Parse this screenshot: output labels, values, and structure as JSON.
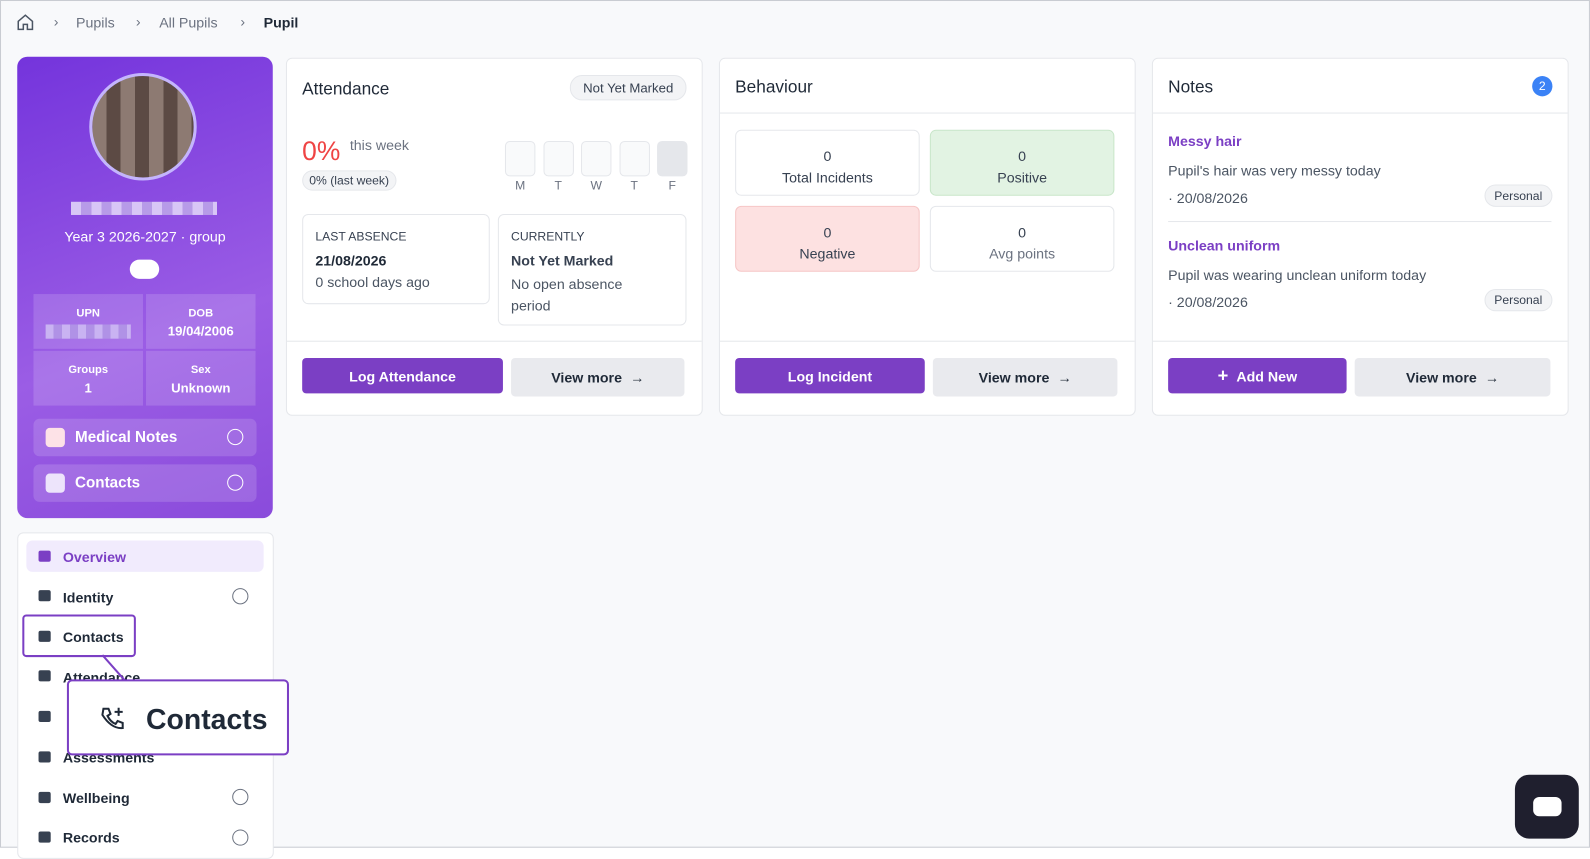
{
  "breadcrumb": [
    "Pupils",
    "All Pupils",
    "Pupil"
  ],
  "profile": {
    "group": "Year 3 2026-2027 · group",
    "stats": [
      {
        "label": "UPN",
        "value": null
      },
      {
        "label": "DOB",
        "value": "19/04/2006"
      },
      {
        "label": "Groups",
        "value": "1"
      },
      {
        "label": "Sex",
        "value": "Unknown"
      }
    ],
    "sections": [
      "Medical Notes",
      "Contacts"
    ]
  },
  "nav": [
    "Overview",
    "Identity",
    "Contacts",
    "Attendance",
    null,
    "Assessments",
    "Wellbeing",
    "Records"
  ],
  "callout": "Contacts",
  "attendance": {
    "title": "Attendance",
    "badge": "Not Yet Marked",
    "percent": "0%",
    "period": "this week",
    "last_week": "0% (last week)",
    "days": [
      "M",
      "T",
      "W",
      "T",
      "F"
    ],
    "last_absence": {
      "label": "LAST ABSENCE",
      "date": "21/08/2026",
      "ago": "0 school days ago"
    },
    "currently": {
      "label": "CURRENTLY",
      "status": "Not Yet Marked",
      "detail": "No open absence period"
    },
    "buttons": [
      "Log Attendance",
      "View more"
    ]
  },
  "behaviour": {
    "title": "Behaviour",
    "tiles": [
      {
        "value": 0,
        "label": "Total Incidents"
      },
      {
        "value": 0,
        "label": "Positive"
      },
      {
        "value": 0,
        "label": "Negative"
      },
      {
        "value": 0,
        "label": "Avg points"
      }
    ],
    "buttons": [
      "Log Incident",
      "View more"
    ]
  },
  "notes": {
    "title": "Notes",
    "count": 2,
    "items": [
      {
        "title": "Messy hair",
        "text": "Pupil's hair was very messy today",
        "date": "· 20/08/2026",
        "tag": "Personal"
      },
      {
        "title": "Unclean uniform",
        "text": "Pupil was wearing unclean uniform today",
        "date": "· 20/08/2026",
        "tag": "Personal"
      }
    ],
    "buttons": [
      "Add New",
      "View more"
    ]
  }
}
